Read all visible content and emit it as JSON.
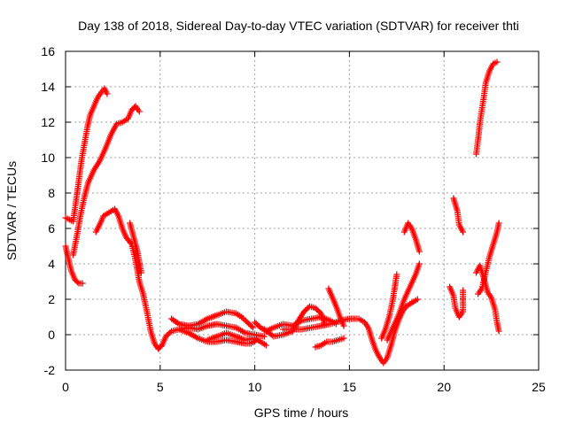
{
  "chart_data": {
    "type": "scatter",
    "title": "Day 138 of 2018, Sidereal Day-to-day VTEC variation (SDTVAR) for receiver thti",
    "xlabel": "GPS time / hours",
    "ylabel": "SDTVAR / TECUs",
    "xlim": [
      0,
      25
    ],
    "ylim": [
      -2,
      16
    ],
    "x_ticks": [
      "0",
      "5",
      "10",
      "15",
      "20",
      "25"
    ],
    "y_ticks": [
      "-2",
      "0",
      "2",
      "4",
      "6",
      "8",
      "10",
      "12",
      "14",
      "16"
    ],
    "grid": true,
    "marker": "+",
    "colors": {
      "points": "#ff0000",
      "grid": "#a0a0a0",
      "frame": "#000000"
    },
    "series": [
      {
        "values": [
          [
            0.0,
            6.6
          ],
          [
            0.2,
            6.5
          ],
          [
            0.4,
            6.4
          ],
          [
            0.55,
            7.5
          ],
          [
            0.7,
            8.7
          ],
          [
            0.85,
            9.9
          ],
          [
            1.0,
            10.8
          ],
          [
            1.15,
            11.7
          ],
          [
            1.3,
            12.4
          ],
          [
            1.5,
            12.9
          ],
          [
            1.7,
            13.4
          ],
          [
            1.9,
            13.7
          ],
          [
            2.05,
            13.9
          ],
          [
            2.2,
            13.6
          ]
        ]
      },
      {
        "values": [
          [
            0.0,
            5.0
          ],
          [
            0.15,
            4.3
          ],
          [
            0.3,
            3.6
          ],
          [
            0.5,
            3.1
          ],
          [
            0.7,
            2.9
          ],
          [
            0.9,
            2.9
          ]
        ]
      },
      {
        "values": [
          [
            0.4,
            4.5
          ],
          [
            0.6,
            5.6
          ],
          [
            0.8,
            6.8
          ],
          [
            1.0,
            7.8
          ],
          [
            1.2,
            8.6
          ],
          [
            1.5,
            9.3
          ],
          [
            1.8,
            9.8
          ],
          [
            2.1,
            10.5
          ],
          [
            2.4,
            11.3
          ],
          [
            2.7,
            11.9
          ],
          [
            3.0,
            12.0
          ],
          [
            3.3,
            12.2
          ],
          [
            3.5,
            12.7
          ],
          [
            3.7,
            12.9
          ],
          [
            3.9,
            12.6
          ]
        ]
      },
      {
        "values": [
          [
            1.6,
            5.8
          ],
          [
            1.8,
            6.2
          ],
          [
            2.0,
            6.7
          ],
          [
            2.3,
            6.9
          ],
          [
            2.6,
            7.1
          ],
          [
            2.8,
            6.7
          ],
          [
            3.0,
            6.0
          ],
          [
            3.2,
            5.5
          ],
          [
            3.5,
            5.1
          ],
          [
            3.7,
            4.2
          ],
          [
            3.9,
            3.0
          ],
          [
            4.1,
            2.3
          ],
          [
            4.3,
            1.3
          ],
          [
            4.5,
            0.2
          ],
          [
            4.7,
            -0.5
          ],
          [
            4.9,
            -0.8
          ],
          [
            5.1,
            -0.6
          ],
          [
            5.3,
            -0.1
          ],
          [
            5.6,
            0.2
          ],
          [
            6.0,
            0.3
          ],
          [
            6.5,
            0.4
          ],
          [
            7.0,
            0.3
          ],
          [
            7.5,
            0.5
          ],
          [
            8.0,
            0.6
          ],
          [
            8.5,
            0.5
          ],
          [
            9.0,
            0.4
          ],
          [
            9.5,
            0.1
          ],
          [
            10.0,
            0.0
          ],
          [
            10.5,
            -0.1
          ]
        ]
      },
      {
        "values": [
          [
            3.4,
            6.3
          ],
          [
            3.6,
            5.5
          ],
          [
            3.8,
            4.7
          ],
          [
            4.0,
            3.5
          ]
        ]
      },
      {
        "values": [
          [
            5.6,
            0.9
          ],
          [
            6.0,
            0.6
          ],
          [
            6.5,
            0.5
          ],
          [
            7.0,
            0.6
          ],
          [
            7.5,
            0.9
          ],
          [
            8.0,
            1.1
          ],
          [
            8.5,
            1.3
          ],
          [
            9.0,
            1.2
          ],
          [
            9.3,
            1.0
          ],
          [
            9.6,
            0.7
          ],
          [
            9.9,
            0.4
          ]
        ]
      },
      {
        "values": [
          [
            6.0,
            0.3
          ],
          [
            6.5,
            0.1
          ],
          [
            7.0,
            -0.2
          ],
          [
            7.5,
            -0.4
          ],
          [
            8.0,
            -0.4
          ],
          [
            8.5,
            -0.3
          ],
          [
            9.0,
            -0.4
          ],
          [
            9.5,
            -0.5
          ],
          [
            9.8,
            -0.5
          ],
          [
            10.1,
            -0.3
          ]
        ]
      },
      {
        "values": [
          [
            7.5,
            -0.3
          ],
          [
            8.0,
            -0.1
          ],
          [
            8.5,
            0.1
          ],
          [
            9.0,
            -0.1
          ],
          [
            9.5,
            -0.3
          ],
          [
            10.0,
            -0.2
          ],
          [
            10.3,
            -0.4
          ],
          [
            10.6,
            -0.6
          ]
        ]
      },
      {
        "values": [
          [
            10.0,
            0.7
          ],
          [
            10.3,
            0.4
          ],
          [
            10.6,
            0.2
          ],
          [
            11.0,
            0.4
          ],
          [
            11.5,
            0.6
          ],
          [
            12.0,
            0.5
          ],
          [
            12.5,
            0.8
          ],
          [
            13.0,
            0.9
          ],
          [
            13.5,
            1.0
          ],
          [
            14.0,
            0.8
          ],
          [
            14.3,
            0.6
          ]
        ]
      },
      {
        "values": [
          [
            10.5,
            0.3
          ],
          [
            11.0,
            -0.1
          ],
          [
            11.5,
            0.0
          ],
          [
            12.0,
            0.2
          ],
          [
            12.3,
            0.8
          ],
          [
            12.6,
            1.3
          ],
          [
            12.9,
            1.6
          ],
          [
            13.2,
            1.5
          ],
          [
            13.5,
            1.2
          ],
          [
            13.7,
            0.6
          ]
        ]
      },
      {
        "values": [
          [
            11.5,
            0.3
          ],
          [
            12.0,
            0.3
          ],
          [
            12.5,
            0.3
          ],
          [
            13.0,
            0.4
          ],
          [
            13.5,
            0.5
          ],
          [
            14.0,
            0.6
          ],
          [
            14.5,
            0.8
          ],
          [
            15.0,
            0.9
          ],
          [
            15.5,
            0.9
          ],
          [
            15.8,
            0.7
          ],
          [
            16.0,
            0.4
          ],
          [
            16.2,
            -0.3
          ],
          [
            16.4,
            -0.9
          ],
          [
            16.6,
            -1.3
          ],
          [
            16.8,
            -1.6
          ],
          [
            17.0,
            -1.3
          ],
          [
            17.2,
            -0.6
          ],
          [
            17.4,
            0.2
          ],
          [
            17.6,
            0.8
          ],
          [
            17.8,
            1.3
          ],
          [
            18.0,
            1.6
          ],
          [
            18.3,
            1.8
          ],
          [
            18.6,
            2.0
          ]
        ]
      },
      {
        "values": [
          [
            13.9,
            2.6
          ],
          [
            14.1,
            2.1
          ],
          [
            14.3,
            1.6
          ],
          [
            14.5,
            1.0
          ],
          [
            14.7,
            0.5
          ]
        ]
      },
      {
        "values": [
          [
            13.2,
            -0.7
          ],
          [
            13.5,
            -0.6
          ],
          [
            13.8,
            -0.4
          ],
          [
            14.1,
            -0.4
          ],
          [
            14.4,
            -0.3
          ],
          [
            14.7,
            -0.2
          ]
        ]
      },
      {
        "values": [
          [
            16.7,
            -0.2
          ],
          [
            16.9,
            0.3
          ],
          [
            17.1,
            1.0
          ],
          [
            17.3,
            2.0
          ],
          [
            17.5,
            3.4
          ]
        ]
      },
      {
        "values": [
          [
            17.0,
            -0.3
          ],
          [
            17.3,
            0.4
          ],
          [
            17.6,
            1.1
          ],
          [
            17.9,
            2.0
          ],
          [
            18.2,
            2.7
          ],
          [
            18.5,
            3.4
          ],
          [
            18.7,
            4.0
          ]
        ]
      },
      {
        "values": [
          [
            17.9,
            5.8
          ],
          [
            18.1,
            6.3
          ],
          [
            18.3,
            6.0
          ],
          [
            18.5,
            5.4
          ],
          [
            18.7,
            4.7
          ]
        ]
      },
      {
        "values": [
          [
            20.3,
            2.7
          ],
          [
            20.5,
            2.2
          ],
          [
            20.6,
            1.5
          ],
          [
            20.8,
            1.0
          ],
          [
            21.0,
            1.3
          ],
          [
            21.0,
            2.5
          ]
        ]
      },
      {
        "values": [
          [
            20.5,
            7.7
          ],
          [
            20.7,
            7.0
          ],
          [
            20.8,
            6.2
          ],
          [
            21.0,
            5.8
          ]
        ]
      },
      {
        "values": [
          [
            21.7,
            10.2
          ],
          [
            21.8,
            11.0
          ],
          [
            21.9,
            12.0
          ],
          [
            22.0,
            12.7
          ],
          [
            22.1,
            13.4
          ],
          [
            22.2,
            14.2
          ],
          [
            22.4,
            14.9
          ],
          [
            22.6,
            15.3
          ],
          [
            22.8,
            15.4
          ]
        ]
      },
      {
        "values": [
          [
            21.7,
            3.5
          ],
          [
            21.9,
            3.9
          ],
          [
            22.1,
            3.2
          ],
          [
            22.3,
            2.4
          ],
          [
            22.5,
            2.1
          ],
          [
            22.7,
            1.4
          ],
          [
            22.8,
            0.7
          ],
          [
            22.9,
            0.2
          ]
        ]
      },
      {
        "values": [
          [
            21.8,
            2.3
          ],
          [
            22.0,
            2.6
          ],
          [
            22.2,
            3.5
          ],
          [
            22.4,
            4.4
          ],
          [
            22.6,
            5.1
          ],
          [
            22.8,
            5.8
          ],
          [
            22.9,
            6.3
          ]
        ]
      }
    ]
  }
}
